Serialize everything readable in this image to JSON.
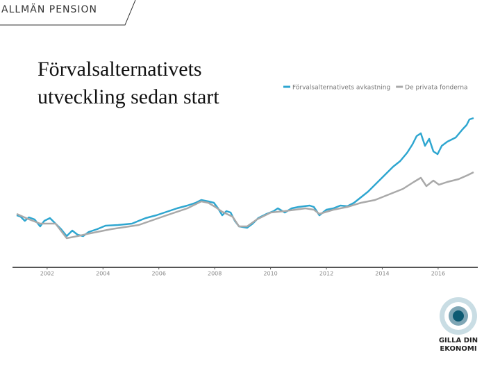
{
  "header": {
    "title": "ALLMÄN PENSION"
  },
  "logo": {
    "lines": [
      "GILLA DIN",
      "EKONOMI"
    ]
  },
  "chart_data": {
    "type": "line",
    "title": "Förvalsalternativets utveckling sedan start",
    "xlim": [
      2000.76,
      2017.42
    ],
    "xticks": [
      2002,
      2004,
      2006,
      2008,
      2010,
      2012,
      2014,
      2016
    ],
    "ylim": [
      0,
      230
    ],
    "legend": "top-right",
    "series": [
      {
        "name": "Förvalsalternativets avkastning",
        "color": "#2ea6d0",
        "x": [
          2000.91,
          2001.05,
          2001.2,
          2001.35,
          2001.55,
          2001.75,
          2001.9,
          2002.1,
          2002.3,
          2002.5,
          2002.7,
          2002.9,
          2003.09,
          2003.29,
          2003.49,
          2003.79,
          2004.09,
          2004.54,
          2005.04,
          2005.28,
          2005.53,
          2005.91,
          2006.28,
          2006.65,
          2007.02,
          2007.32,
          2007.52,
          2007.77,
          2007.97,
          2008.12,
          2008.27,
          2008.42,
          2008.57,
          2008.72,
          2008.87,
          2009.16,
          2009.36,
          2009.56,
          2009.86,
          2010.11,
          2010.26,
          2010.51,
          2010.76,
          2011.0,
          2011.4,
          2011.55,
          2011.75,
          2012.0,
          2012.25,
          2012.5,
          2012.75,
          2012.99,
          2013.24,
          2013.49,
          2013.74,
          2013.94,
          2014.14,
          2014.39,
          2014.64,
          2014.89,
          2015.08,
          2015.23,
          2015.38,
          2015.53,
          2015.68,
          2015.83,
          2015.98,
          2016.13,
          2016.33,
          2016.63,
          2016.88,
          2017.02,
          2017.12,
          2017.27
        ],
        "values": [
          75,
          73,
          67,
          72,
          69,
          59,
          67,
          71,
          63,
          55,
          45,
          53,
          47,
          45,
          51,
          55,
          60,
          61,
          63,
          67,
          71,
          75,
          80,
          85,
          89,
          93,
          97,
          95,
          93,
          85,
          75,
          81,
          79,
          67,
          59,
          57,
          63,
          71,
          77,
          81,
          85,
          79,
          85,
          87,
          89,
          87,
          75,
          83,
          85,
          89,
          88,
          93,
          101,
          109,
          119,
          127,
          135,
          145,
          153,
          165,
          177,
          189,
          193,
          175,
          185,
          167,
          163,
          175,
          181,
          187,
          199,
          205,
          213,
          215
        ]
      },
      {
        "name": "De privata fonderna",
        "color": "#a9a9a9",
        "x": [
          2000.91,
          2001.3,
          2001.75,
          2002.3,
          2002.7,
          2003.09,
          2003.54,
          2004.29,
          2005.28,
          2006.28,
          2007.02,
          2007.52,
          2007.77,
          2008.02,
          2008.27,
          2008.64,
          2008.87,
          2009.16,
          2009.51,
          2010.01,
          2010.51,
          2011.25,
          2011.55,
          2011.75,
          2012.25,
          2012.75,
          2013.24,
          2013.74,
          2014.24,
          2014.74,
          2015.13,
          2015.38,
          2015.58,
          2015.83,
          2016.03,
          2016.33,
          2016.73,
          2017.07,
          2017.27
        ],
        "values": [
          77,
          70,
          63,
          63,
          42,
          45,
          49,
          55,
          61,
          75,
          85,
          95,
          93,
          87,
          80,
          73,
          59,
          59,
          69,
          79,
          81,
          85,
          83,
          77,
          83,
          87,
          93,
          97,
          105,
          113,
          123,
          129,
          117,
          125,
          119,
          123,
          127,
          133,
          137
        ]
      }
    ]
  }
}
